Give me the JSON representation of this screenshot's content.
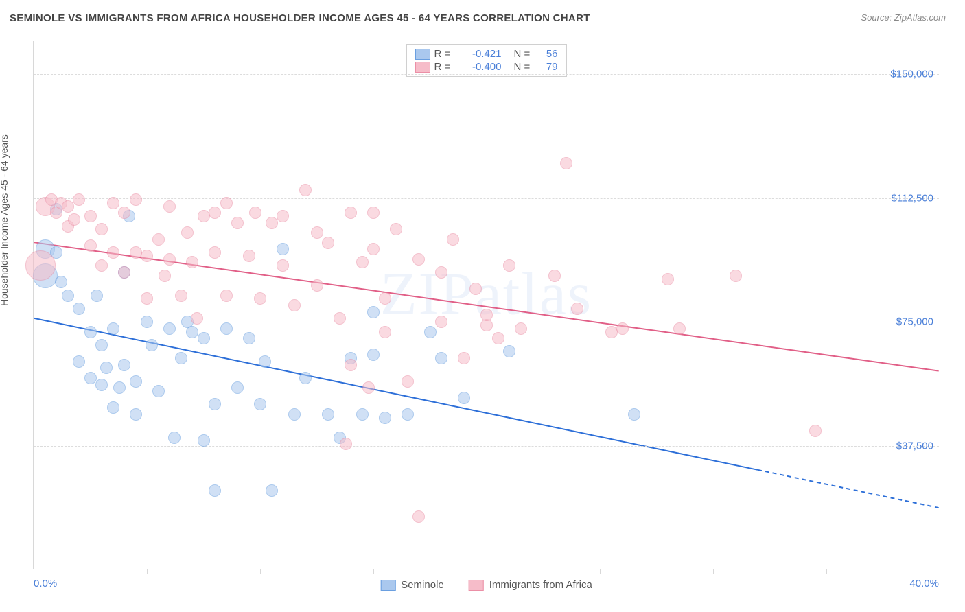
{
  "title": "SEMINOLE VS IMMIGRANTS FROM AFRICA HOUSEHOLDER INCOME AGES 45 - 64 YEARS CORRELATION CHART",
  "source": "Source: ZipAtlas.com",
  "watermark": "ZIPatlas",
  "ylabel": "Householder Income Ages 45 - 64 years",
  "chart": {
    "type": "scatter",
    "xlim": [
      0,
      40
    ],
    "ylim": [
      0,
      160000
    ],
    "x_start_label": "0.0%",
    "x_end_label": "40.0%",
    "xticks_pct": [
      0,
      12.5,
      25,
      37.5,
      50,
      62.5,
      75,
      87.5,
      100
    ],
    "y_gridlines": [
      37500,
      75000,
      112500,
      150000
    ],
    "y_labels": [
      "$37,500",
      "$75,000",
      "$112,500",
      "$150,000"
    ],
    "background_color": "#ffffff",
    "grid_color": "#dcdcdc",
    "axis_color": "#d8d8d8",
    "label_color": "#4a7fd8"
  },
  "series": [
    {
      "name": "Seminole",
      "fill": "#aac8ee",
      "stroke": "#6a9fe0",
      "fill_opacity": 0.55,
      "marker_radius": 9,
      "correlation_R": "-0.421",
      "correlation_N": "56",
      "regression": {
        "x1": 0,
        "y1": 76000,
        "x2": 32,
        "y2": 30000,
        "dashed_to_x": 40,
        "dashed_to_y": 18500,
        "color": "#2d6fd8",
        "width": 2
      },
      "points": [
        {
          "x": 0.5,
          "y": 97000,
          "r": 14
        },
        {
          "x": 0.5,
          "y": 89000,
          "r": 18
        },
        {
          "x": 1.0,
          "y": 96000
        },
        {
          "x": 1.2,
          "y": 87000
        },
        {
          "x": 1.0,
          "y": 109000
        },
        {
          "x": 1.5,
          "y": 83000
        },
        {
          "x": 2.0,
          "y": 79000
        },
        {
          "x": 2.0,
          "y": 63000
        },
        {
          "x": 2.5,
          "y": 72000
        },
        {
          "x": 2.5,
          "y": 58000
        },
        {
          "x": 2.8,
          "y": 83000
        },
        {
          "x": 3.0,
          "y": 68000
        },
        {
          "x": 3.0,
          "y": 56000
        },
        {
          "x": 3.2,
          "y": 61000
        },
        {
          "x": 3.5,
          "y": 73000
        },
        {
          "x": 3.5,
          "y": 49000
        },
        {
          "x": 3.8,
          "y": 55000
        },
        {
          "x": 4.0,
          "y": 62000
        },
        {
          "x": 4.0,
          "y": 90000
        },
        {
          "x": 4.5,
          "y": 57000
        },
        {
          "x": 4.5,
          "y": 47000
        },
        {
          "x": 5.0,
          "y": 75000
        },
        {
          "x": 5.2,
          "y": 68000
        },
        {
          "x": 5.5,
          "y": 54000
        },
        {
          "x": 6.0,
          "y": 73000
        },
        {
          "x": 6.2,
          "y": 40000
        },
        {
          "x": 6.5,
          "y": 64000
        },
        {
          "x": 6.8,
          "y": 75000
        },
        {
          "x": 7.0,
          "y": 72000
        },
        {
          "x": 7.5,
          "y": 39000
        },
        {
          "x": 7.5,
          "y": 70000
        },
        {
          "x": 8.0,
          "y": 50000
        },
        {
          "x": 8.0,
          "y": 24000
        },
        {
          "x": 8.5,
          "y": 73000
        },
        {
          "x": 9.0,
          "y": 55000
        },
        {
          "x": 9.5,
          "y": 70000
        },
        {
          "x": 10.0,
          "y": 50000
        },
        {
          "x": 10.2,
          "y": 63000
        },
        {
          "x": 10.5,
          "y": 24000
        },
        {
          "x": 11.0,
          "y": 97000
        },
        {
          "x": 11.5,
          "y": 47000
        },
        {
          "x": 12.0,
          "y": 58000
        },
        {
          "x": 13.0,
          "y": 47000
        },
        {
          "x": 13.5,
          "y": 40000
        },
        {
          "x": 14.0,
          "y": 64000
        },
        {
          "x": 14.5,
          "y": 47000
        },
        {
          "x": 15.0,
          "y": 78000
        },
        {
          "x": 15.0,
          "y": 65000
        },
        {
          "x": 15.5,
          "y": 46000
        },
        {
          "x": 16.5,
          "y": 47000
        },
        {
          "x": 17.5,
          "y": 72000
        },
        {
          "x": 18.0,
          "y": 64000
        },
        {
          "x": 19.0,
          "y": 52000
        },
        {
          "x": 21.0,
          "y": 66000
        },
        {
          "x": 26.5,
          "y": 47000
        },
        {
          "x": 4.2,
          "y": 107000
        }
      ]
    },
    {
      "name": "Immigrants from Africa",
      "fill": "#f6bcc9",
      "stroke": "#eb8fa6",
      "fill_opacity": 0.55,
      "marker_radius": 9,
      "correlation_R": "-0.400",
      "correlation_N": "79",
      "regression": {
        "x1": 0,
        "y1": 99000,
        "x2": 40,
        "y2": 60000,
        "color": "#e15f87",
        "width": 2
      },
      "points": [
        {
          "x": 0.3,
          "y": 92000,
          "r": 22
        },
        {
          "x": 0.5,
          "y": 110000,
          "r": 14
        },
        {
          "x": 0.8,
          "y": 112000
        },
        {
          "x": 1.0,
          "y": 108000
        },
        {
          "x": 1.2,
          "y": 111000
        },
        {
          "x": 1.5,
          "y": 104000
        },
        {
          "x": 1.5,
          "y": 110000
        },
        {
          "x": 1.8,
          "y": 106000
        },
        {
          "x": 2.0,
          "y": 112000
        },
        {
          "x": 2.5,
          "y": 98000
        },
        {
          "x": 2.5,
          "y": 107000
        },
        {
          "x": 3.0,
          "y": 92000
        },
        {
          "x": 3.0,
          "y": 103000
        },
        {
          "x": 3.5,
          "y": 96000
        },
        {
          "x": 3.5,
          "y": 111000
        },
        {
          "x": 4.0,
          "y": 108000
        },
        {
          "x": 4.0,
          "y": 90000
        },
        {
          "x": 4.5,
          "y": 112000
        },
        {
          "x": 4.5,
          "y": 96000
        },
        {
          "x": 5.0,
          "y": 82000
        },
        {
          "x": 5.0,
          "y": 95000
        },
        {
          "x": 5.5,
          "y": 100000
        },
        {
          "x": 5.8,
          "y": 89000
        },
        {
          "x": 6.0,
          "y": 110000
        },
        {
          "x": 6.0,
          "y": 94000
        },
        {
          "x": 6.5,
          "y": 83000
        },
        {
          "x": 6.8,
          "y": 102000
        },
        {
          "x": 7.0,
          "y": 93000
        },
        {
          "x": 7.5,
          "y": 107000
        },
        {
          "x": 8.0,
          "y": 96000
        },
        {
          "x": 8.0,
          "y": 108000
        },
        {
          "x": 8.5,
          "y": 111000
        },
        {
          "x": 8.5,
          "y": 83000
        },
        {
          "x": 9.0,
          "y": 105000
        },
        {
          "x": 9.5,
          "y": 95000
        },
        {
          "x": 9.8,
          "y": 108000
        },
        {
          "x": 10.0,
          "y": 82000
        },
        {
          "x": 10.5,
          "y": 105000
        },
        {
          "x": 11.0,
          "y": 92000
        },
        {
          "x": 11.0,
          "y": 107000
        },
        {
          "x": 11.5,
          "y": 80000
        },
        {
          "x": 12.0,
          "y": 115000
        },
        {
          "x": 12.5,
          "y": 102000
        },
        {
          "x": 12.5,
          "y": 86000
        },
        {
          "x": 13.0,
          "y": 99000
        },
        {
          "x": 13.5,
          "y": 76000
        },
        {
          "x": 13.8,
          "y": 38000
        },
        {
          "x": 14.0,
          "y": 108000
        },
        {
          "x": 14.0,
          "y": 62000
        },
        {
          "x": 14.5,
          "y": 93000
        },
        {
          "x": 14.8,
          "y": 55000
        },
        {
          "x": 15.0,
          "y": 97000
        },
        {
          "x": 15.0,
          "y": 108000
        },
        {
          "x": 15.5,
          "y": 82000
        },
        {
          "x": 15.5,
          "y": 72000
        },
        {
          "x": 16.0,
          "y": 103000
        },
        {
          "x": 16.5,
          "y": 57000
        },
        {
          "x": 17.0,
          "y": 94000
        },
        {
          "x": 17.0,
          "y": 16000
        },
        {
          "x": 18.0,
          "y": 90000
        },
        {
          "x": 18.0,
          "y": 75000
        },
        {
          "x": 18.5,
          "y": 100000
        },
        {
          "x": 19.0,
          "y": 64000
        },
        {
          "x": 19.5,
          "y": 85000
        },
        {
          "x": 20.0,
          "y": 74000
        },
        {
          "x": 20.0,
          "y": 77000
        },
        {
          "x": 20.5,
          "y": 70000
        },
        {
          "x": 21.0,
          "y": 92000
        },
        {
          "x": 21.5,
          "y": 73000
        },
        {
          "x": 23.0,
          "y": 89000
        },
        {
          "x": 23.5,
          "y": 123000
        },
        {
          "x": 24.0,
          "y": 79000
        },
        {
          "x": 25.5,
          "y": 72000
        },
        {
          "x": 26.0,
          "y": 73000
        },
        {
          "x": 28.0,
          "y": 88000
        },
        {
          "x": 28.5,
          "y": 73000
        },
        {
          "x": 31.0,
          "y": 89000
        },
        {
          "x": 34.5,
          "y": 42000
        },
        {
          "x": 7.2,
          "y": 76000
        }
      ]
    }
  ],
  "legend_bottom": [
    "Seminole",
    "Immigrants from Africa"
  ]
}
